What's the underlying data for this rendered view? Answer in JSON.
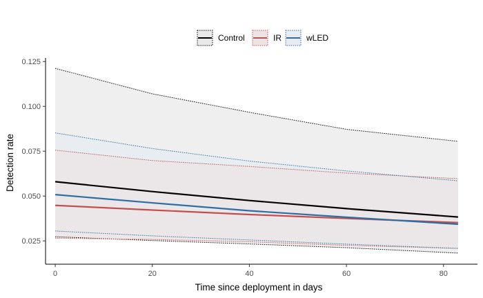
{
  "chart_data": {
    "type": "line",
    "title": "",
    "xlabel": "Time since deployment in days",
    "ylabel": "Detection rate",
    "xlim": [
      -2,
      87
    ],
    "ylim": [
      0.012,
      0.127
    ],
    "x_ticks": [
      0,
      20,
      40,
      60,
      80
    ],
    "x_tick_labels": [
      "0",
      "20",
      "40",
      "60",
      "80"
    ],
    "y_ticks": [
      0.025,
      0.05,
      0.075,
      0.1,
      0.125
    ],
    "y_tick_labels": [
      "0.025",
      "0.050",
      "0.075",
      "0.100",
      "0.125"
    ],
    "grid": false,
    "legend_position": "top",
    "series": [
      {
        "name": "Control",
        "color": "#000000",
        "fill": "#e9e9ea",
        "x": [
          0,
          20,
          40,
          60,
          83
        ],
        "y": [
          0.058,
          0.0525,
          0.0475,
          0.043,
          0.0383
        ],
        "lower": [
          0.0273,
          0.0252,
          0.0233,
          0.0212,
          0.0182
        ],
        "upper": [
          0.1212,
          0.107,
          0.0967,
          0.0872,
          0.0805
        ]
      },
      {
        "name": "IR",
        "color": "#c0504d",
        "fill": "#ece4e4",
        "x": [
          0,
          20,
          40,
          60,
          83
        ],
        "y": [
          0.0448,
          0.0422,
          0.0397,
          0.0375,
          0.0352
        ],
        "lower": [
          0.0265,
          0.0258,
          0.0245,
          0.0225,
          0.0208
        ],
        "upper": [
          0.0756,
          0.0698,
          0.0665,
          0.0628,
          0.0597
        ]
      },
      {
        "name": "wLED",
        "color": "#2e6da4",
        "fill": "#e6ecf2",
        "x": [
          0,
          20,
          40,
          60,
          83
        ],
        "y": [
          0.0508,
          0.0462,
          0.0418,
          0.0382,
          0.0343
        ],
        "lower": [
          0.0305,
          0.0278,
          0.0255,
          0.0232,
          0.0208
        ],
        "upper": [
          0.0852,
          0.0765,
          0.0695,
          0.064,
          0.0585
        ]
      }
    ]
  }
}
